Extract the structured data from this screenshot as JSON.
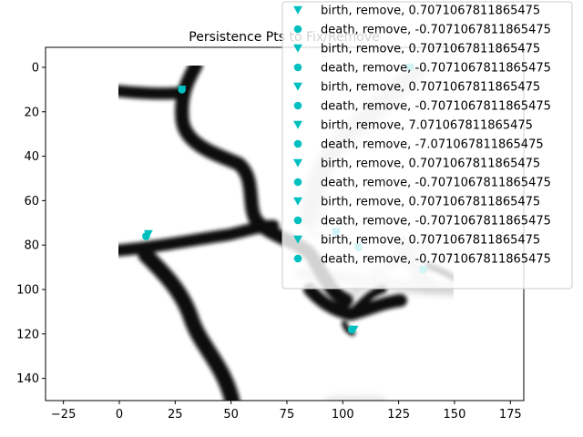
{
  "chart_data": {
    "type": "scatter",
    "title": "Persistence Pts to Fix/Remove",
    "xlabel": "",
    "ylabel": "",
    "xlim": [
      -33,
      181
    ],
    "ylim": [
      150,
      -9
    ],
    "y_inverted": true,
    "x_ticks": [
      -25,
      0,
      25,
      50,
      75,
      100,
      125,
      150,
      175
    ],
    "y_ticks": [
      0,
      20,
      40,
      60,
      80,
      100,
      120,
      140
    ],
    "image_extent": [
      0,
      150,
      0,
      150
    ],
    "legend_position": "top-right",
    "marker_color": "#00bfbf",
    "series": [
      {
        "name": "birth, remove, 0.7071067811865475",
        "marker": "triangle-down",
        "points": [
          [
            28,
            10
          ]
        ]
      },
      {
        "name": "death, remove, -0.7071067811865475",
        "marker": "circle",
        "points": [
          [
            28,
            10
          ]
        ]
      },
      {
        "name": "birth, remove, 0.7071067811865475",
        "marker": "triangle-down",
        "points": [
          [
            13,
            75
          ]
        ]
      },
      {
        "name": "death, remove, -0.7071067811865475",
        "marker": "circle",
        "points": [
          [
            12,
            76
          ]
        ]
      },
      {
        "name": "birth, remove, 0.7071067811865475",
        "marker": "triangle-down",
        "points": [
          [
            105,
            118
          ]
        ]
      },
      {
        "name": "death, remove, -0.7071067811865475",
        "marker": "circle",
        "points": [
          [
            104,
            118
          ]
        ]
      },
      {
        "name": "birth, remove, 7.071067811865475",
        "marker": "triangle-down",
        "points": [
          [
            130,
            0
          ]
        ]
      },
      {
        "name": "death, remove, -7.071067811865475",
        "marker": "circle",
        "points": [
          [
            130,
            0
          ]
        ]
      },
      {
        "name": "birth, remove, 0.7071067811865475",
        "marker": "triangle-down",
        "points": [
          [
            97,
            74
          ]
        ]
      },
      {
        "name": "death, remove, -0.7071067811865475",
        "marker": "circle",
        "points": [
          [
            97,
            74
          ]
        ]
      },
      {
        "name": "birth, remove, 0.7071067811865475",
        "marker": "triangle-down",
        "points": [
          [
            107,
            81
          ]
        ]
      },
      {
        "name": "death, remove, -0.7071067811865475",
        "marker": "circle",
        "points": [
          [
            107,
            81
          ]
        ]
      },
      {
        "name": "birth, remove, 0.7071067811865475",
        "marker": "triangle-down",
        "points": [
          [
            136,
            91
          ]
        ]
      },
      {
        "name": "death, remove, -0.7071067811865475",
        "marker": "circle",
        "points": [
          [
            136,
            91
          ]
        ]
      }
    ]
  }
}
